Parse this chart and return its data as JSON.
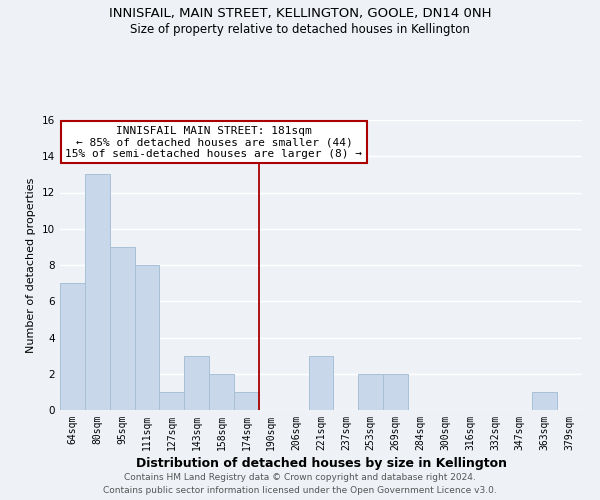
{
  "title": "INNISFAIL, MAIN STREET, KELLINGTON, GOOLE, DN14 0NH",
  "subtitle": "Size of property relative to detached houses in Kellington",
  "xlabel": "Distribution of detached houses by size in Kellington",
  "ylabel": "Number of detached properties",
  "bar_color": "#c8d8ea",
  "bar_edgecolor": "#a8c0d6",
  "categories": [
    "64sqm",
    "80sqm",
    "95sqm",
    "111sqm",
    "127sqm",
    "143sqm",
    "158sqm",
    "174sqm",
    "190sqm",
    "206sqm",
    "221sqm",
    "237sqm",
    "253sqm",
    "269sqm",
    "284sqm",
    "300sqm",
    "316sqm",
    "332sqm",
    "347sqm",
    "363sqm",
    "379sqm"
  ],
  "values": [
    7,
    13,
    9,
    8,
    1,
    3,
    2,
    1,
    0,
    0,
    3,
    0,
    2,
    2,
    0,
    0,
    0,
    0,
    0,
    1,
    0
  ],
  "ylim": [
    0,
    16
  ],
  "yticks": [
    0,
    2,
    4,
    6,
    8,
    10,
    12,
    14,
    16
  ],
  "annotation_title": "INNISFAIL MAIN STREET: 181sqm",
  "annotation_line1": "← 85% of detached houses are smaller (44)",
  "annotation_line2": "15% of semi-detached houses are larger (8) →",
  "vline_x": 7.5,
  "footer1": "Contains HM Land Registry data © Crown copyright and database right 2024.",
  "footer2": "Contains public sector information licensed under the Open Government Licence v3.0.",
  "background_color": "#eef2f7",
  "plot_background": "#eef2f7",
  "grid_color": "#ffffff",
  "annotation_box_edgecolor": "#aa0000",
  "vline_color": "#aa0000",
  "title_fontsize": 9.5,
  "subtitle_fontsize": 8.5,
  "xlabel_fontsize": 9,
  "ylabel_fontsize": 8,
  "tick_fontsize": 7,
  "ann_fontsize": 8,
  "footer_fontsize": 6.5
}
